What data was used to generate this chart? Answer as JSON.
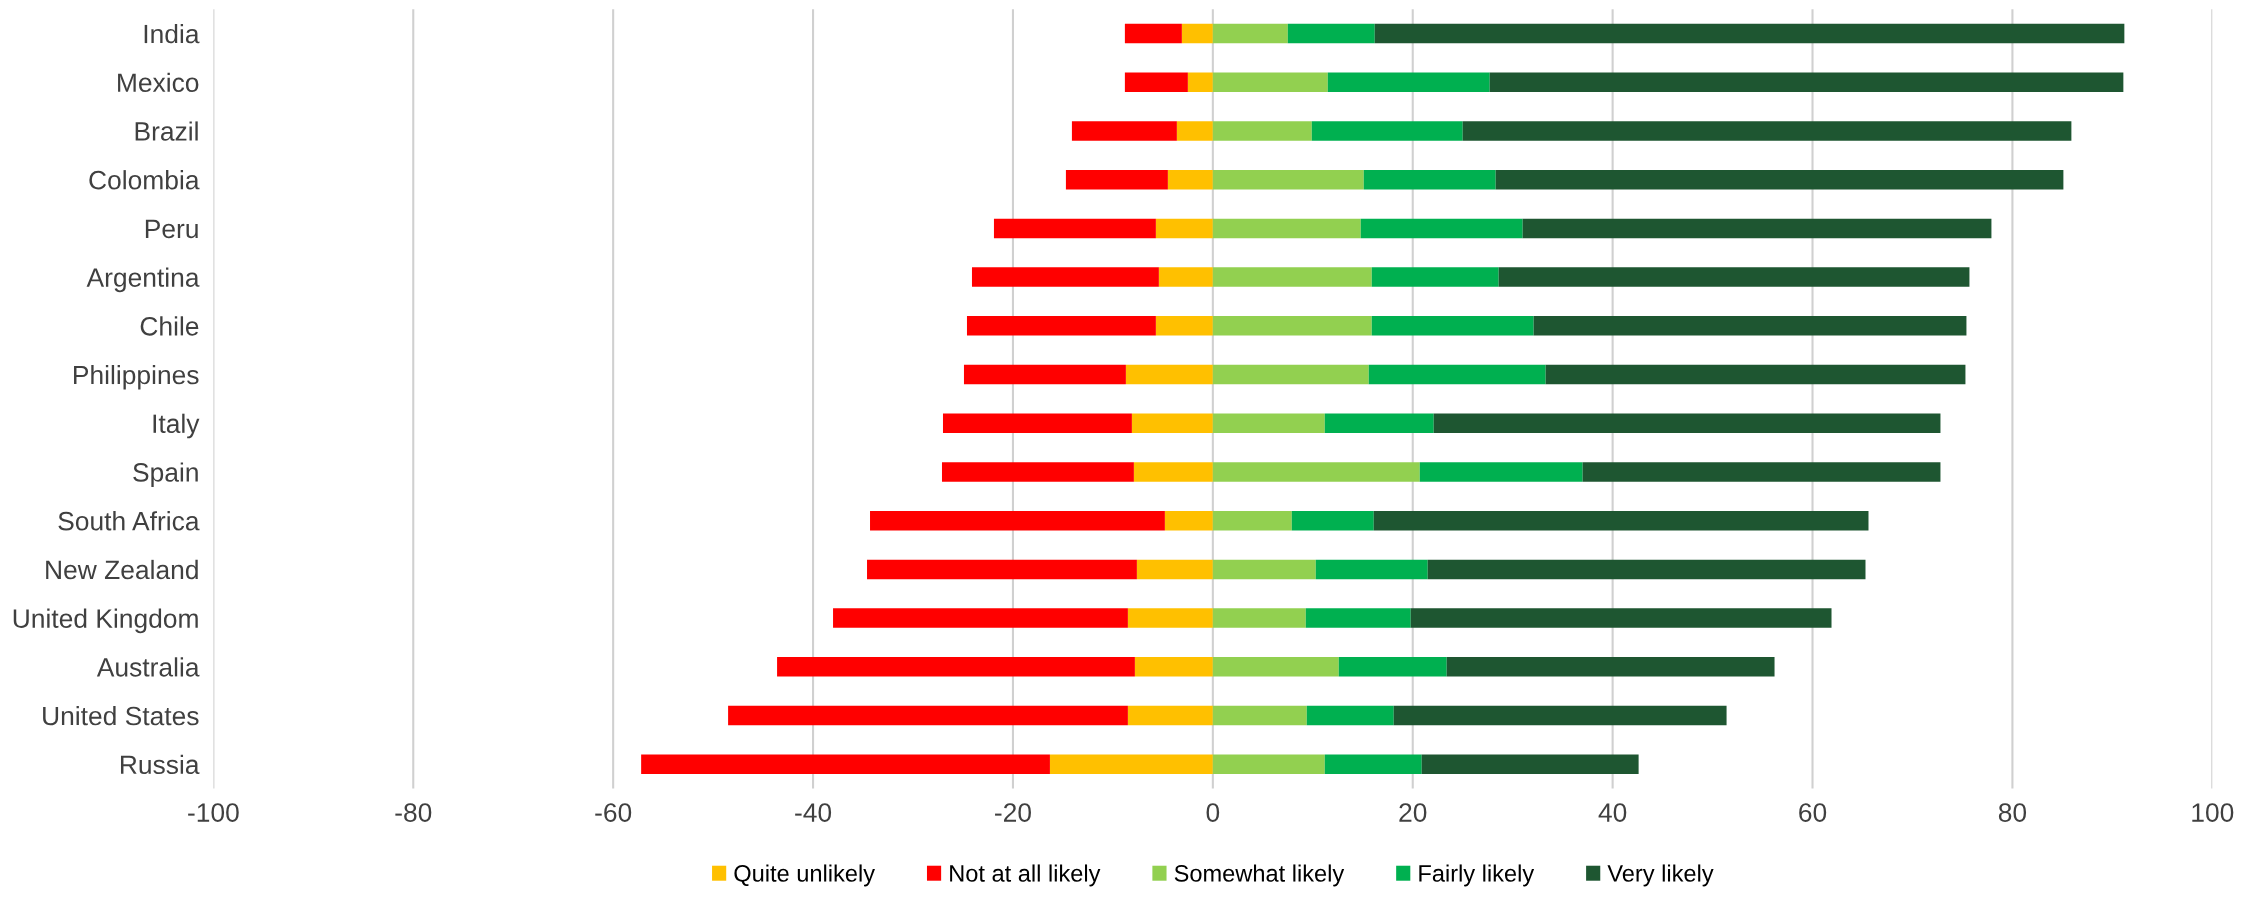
{
  "chart_data": {
    "type": "bar",
    "orientation": "horizontal",
    "stacked": true,
    "categories": [
      "India",
      "Mexico",
      "Brazil",
      "Colombia",
      "Peru",
      "Argentina",
      "Chile",
      "Philippines",
      "Italy",
      "Spain",
      "South Africa",
      "New Zealand",
      "United Kingdom",
      "Australia",
      "United States",
      "Russia"
    ],
    "series": [
      {
        "name": "Quite unlikely",
        "color": "#ffc000",
        "values": [
          -3.1,
          -2.5,
          -3.6,
          -4.5,
          -5.7,
          -5.4,
          -5.7,
          -8.7,
          -8.1,
          -7.9,
          -4.8,
          -7.6,
          -8.5,
          -7.8,
          -8.5,
          -16.3
        ]
      },
      {
        "name": "Not at all likely",
        "color": "#ff0000",
        "values": [
          -5.7,
          -6.3,
          -10.5,
          -10.2,
          -16.2,
          -18.7,
          -18.9,
          -16.2,
          -18.9,
          -19.2,
          -29.5,
          -27.0,
          -29.5,
          -35.8,
          -40.0,
          -40.9
        ]
      },
      {
        "name": "Somewhat likely",
        "color": "#92d050",
        "values": [
          7.5,
          11.5,
          9.9,
          15.1,
          14.8,
          15.9,
          15.9,
          15.6,
          11.2,
          20.7,
          7.9,
          10.3,
          9.3,
          12.6,
          9.4,
          11.2
        ]
      },
      {
        "name": "Fairly likely",
        "color": "#00b050",
        "values": [
          8.7,
          16.2,
          15.1,
          13.2,
          16.2,
          12.7,
          16.2,
          17.7,
          10.9,
          16.3,
          8.2,
          11.2,
          10.5,
          10.8,
          8.7,
          9.7
        ]
      },
      {
        "name": "Very likely",
        "color": "#1e5631",
        "values": [
          75.0,
          63.4,
          60.9,
          56.8,
          46.9,
          47.1,
          43.3,
          42.0,
          50.7,
          35.8,
          49.5,
          43.8,
          42.1,
          32.8,
          33.3,
          21.7
        ]
      }
    ],
    "xlim": [
      -100,
      100
    ],
    "xticks": [
      -100,
      -80,
      -60,
      -40,
      -20,
      0,
      20,
      40,
      60,
      80,
      100
    ],
    "grid": "x",
    "legend": "bottom"
  }
}
